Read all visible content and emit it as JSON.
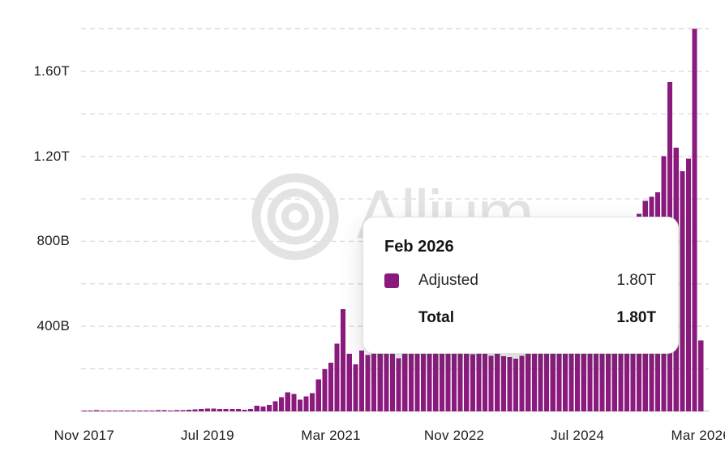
{
  "chart_data": {
    "type": "bar",
    "title": "",
    "x_start": "Nov 2017",
    "x_end": "Mar 2026",
    "x_frequency": "monthly",
    "x_tick_labels": [
      "Nov 2017",
      "Jul 2019",
      "Mar 2021",
      "Nov 2022",
      "Jul 2024",
      "Mar 2026"
    ],
    "x_tick_interval_months": 20,
    "grid": "dashed-horizontal",
    "legend_position": "none",
    "y_axis": {
      "max_billions": 1800,
      "gridline_step_billions": 200,
      "labeled_ticks": [
        {
          "value_billions": 400,
          "label": "400B"
        },
        {
          "value_billions": 800,
          "label": "800B"
        },
        {
          "value_billions": 1200,
          "label": "1.20T"
        },
        {
          "value_billions": 1600,
          "label": "1.60T"
        }
      ]
    },
    "series": [
      {
        "name": "Adjusted",
        "color": "#8B1A7E",
        "values_billions": [
          3,
          4,
          5,
          4,
          4,
          3,
          3,
          3,
          3,
          3,
          4,
          4,
          5,
          5,
          4,
          5,
          6,
          8,
          9,
          11,
          14,
          13,
          12,
          12,
          12,
          12,
          8,
          12,
          27,
          23,
          31,
          47,
          66,
          90,
          82,
          55,
          70,
          85,
          151,
          198,
          229,
          318,
          481,
          272,
          221,
          287,
          265,
          290,
          320,
          340,
          310,
          250,
          330,
          345,
          400,
          330,
          295,
          300,
          310,
          290,
          330,
          285,
          290,
          270,
          320,
          280,
          262,
          272,
          260,
          255,
          248,
          262,
          290,
          330,
          370,
          400,
          450,
          420,
          430,
          410,
          390,
          380,
          365,
          400,
          500,
          560,
          520,
          485,
          550,
          600,
          930,
          990,
          1010,
          1030,
          1200,
          1550,
          1240,
          1130,
          1190,
          1800,
          335
        ]
      }
    ],
    "highlighted_bar": {
      "month": "Feb 2026",
      "value_billions": 1800
    }
  },
  "tooltip": {
    "title": "Feb 2026",
    "rows": [
      {
        "label": "Adjusted",
        "value": "1.80T",
        "swatch": true,
        "bold": false
      },
      {
        "label": "Total",
        "value": "1.80T",
        "swatch": false,
        "bold": true
      }
    ]
  },
  "watermark": {
    "text": "Allium",
    "logo": "concentric-circles-logo"
  },
  "colors": {
    "bar": "#8B1A7E",
    "gridline": "#dbdbdb",
    "axis_line": "#cfcfcf",
    "axis_text": "#1c1c1c",
    "watermark": "#e3e3e3",
    "tooltip_bg": "#ffffff",
    "tooltip_border": "#e2e2e2"
  }
}
